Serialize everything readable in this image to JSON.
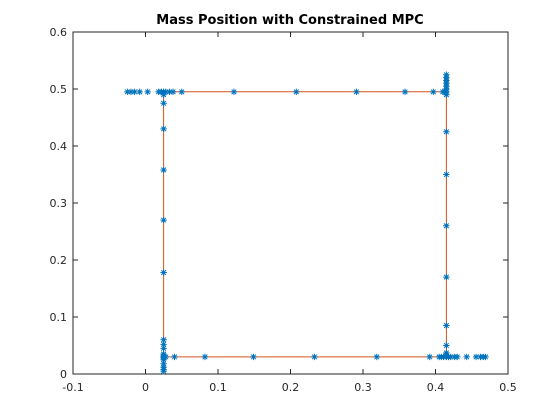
{
  "chart_data": {
    "type": "scatter",
    "title": "Mass Position with Constrained MPC",
    "xlabel": "",
    "ylabel": "",
    "xlim": [
      -0.1,
      0.5
    ],
    "ylim": [
      0,
      0.6
    ],
    "xticks": [
      -0.1,
      0,
      0.1,
      0.2,
      0.3,
      0.4,
      0.5
    ],
    "yticks": [
      0,
      0.1,
      0.2,
      0.3,
      0.4,
      0.5,
      0.6
    ],
    "xtick_labels": [
      "-0.1",
      "0",
      "0.1",
      "0.2",
      "0.3",
      "0.4",
      "0.5"
    ],
    "ytick_labels": [
      "0",
      "0.1",
      "0.2",
      "0.3",
      "0.4",
      "0.5",
      "0.6"
    ],
    "grid": false,
    "box": true,
    "colors": {
      "markers": "#0072bd",
      "reference": "#d95319",
      "axes": "#262626"
    },
    "series": [
      {
        "kind": "line",
        "points": [
          [
            0.025,
            0.03
          ],
          [
            0.025,
            0.495
          ],
          [
            0.415,
            0.495
          ],
          [
            0.415,
            0.03
          ],
          [
            0.025,
            0.03
          ]
        ]
      },
      {
        "kind": "markers",
        "marker": "asterisk",
        "points": [
          [
            0.025,
            0.005
          ],
          [
            0.025,
            0.008
          ],
          [
            0.025,
            0.012
          ],
          [
            0.025,
            0.018
          ],
          [
            0.025,
            0.025
          ],
          [
            0.025,
            0.028
          ],
          [
            0.025,
            0.03
          ],
          [
            0.025,
            0.032
          ],
          [
            0.025,
            0.035
          ],
          [
            0.025,
            0.045
          ],
          [
            0.025,
            0.052
          ],
          [
            0.025,
            0.06
          ],
          [
            0.025,
            0.178
          ],
          [
            0.025,
            0.27
          ],
          [
            0.025,
            0.358
          ],
          [
            0.025,
            0.43
          ],
          [
            0.025,
            0.475
          ],
          [
            0.025,
            0.49
          ],
          [
            0.025,
            0.495
          ],
          [
            -0.025,
            0.495
          ],
          [
            -0.02,
            0.495
          ],
          [
            -0.015,
            0.495
          ],
          [
            -0.008,
            0.495
          ],
          [
            0.003,
            0.495
          ],
          [
            0.018,
            0.495
          ],
          [
            0.022,
            0.495
          ],
          [
            0.028,
            0.495
          ],
          [
            0.033,
            0.495
          ],
          [
            0.038,
            0.495
          ],
          [
            0.05,
            0.495
          ],
          [
            0.122,
            0.495
          ],
          [
            0.208,
            0.495
          ],
          [
            0.291,
            0.495
          ],
          [
            0.358,
            0.495
          ],
          [
            0.397,
            0.495
          ],
          [
            0.41,
            0.495
          ],
          [
            0.413,
            0.495
          ],
          [
            0.415,
            0.495
          ],
          [
            0.415,
            0.49
          ],
          [
            0.415,
            0.5
          ],
          [
            0.415,
            0.505
          ],
          [
            0.415,
            0.51
          ],
          [
            0.415,
            0.515
          ],
          [
            0.415,
            0.52
          ],
          [
            0.415,
            0.525
          ],
          [
            0.415,
            0.425
          ],
          [
            0.415,
            0.35
          ],
          [
            0.415,
            0.26
          ],
          [
            0.415,
            0.17
          ],
          [
            0.415,
            0.085
          ],
          [
            0.415,
            0.05
          ],
          [
            0.415,
            0.037
          ],
          [
            0.415,
            0.033
          ],
          [
            0.415,
            0.03
          ],
          [
            0.405,
            0.03
          ],
          [
            0.408,
            0.03
          ],
          [
            0.411,
            0.03
          ],
          [
            0.418,
            0.03
          ],
          [
            0.421,
            0.03
          ],
          [
            0.426,
            0.03
          ],
          [
            0.43,
            0.03
          ],
          [
            0.443,
            0.03
          ],
          [
            0.456,
            0.03
          ],
          [
            0.462,
            0.03
          ],
          [
            0.466,
            0.03
          ],
          [
            0.469,
            0.03
          ],
          [
            0.392,
            0.03
          ],
          [
            0.319,
            0.03
          ],
          [
            0.233,
            0.03
          ],
          [
            0.149,
            0.03
          ],
          [
            0.082,
            0.03
          ],
          [
            0.04,
            0.03
          ],
          [
            0.028,
            0.03
          ]
        ]
      }
    ]
  }
}
